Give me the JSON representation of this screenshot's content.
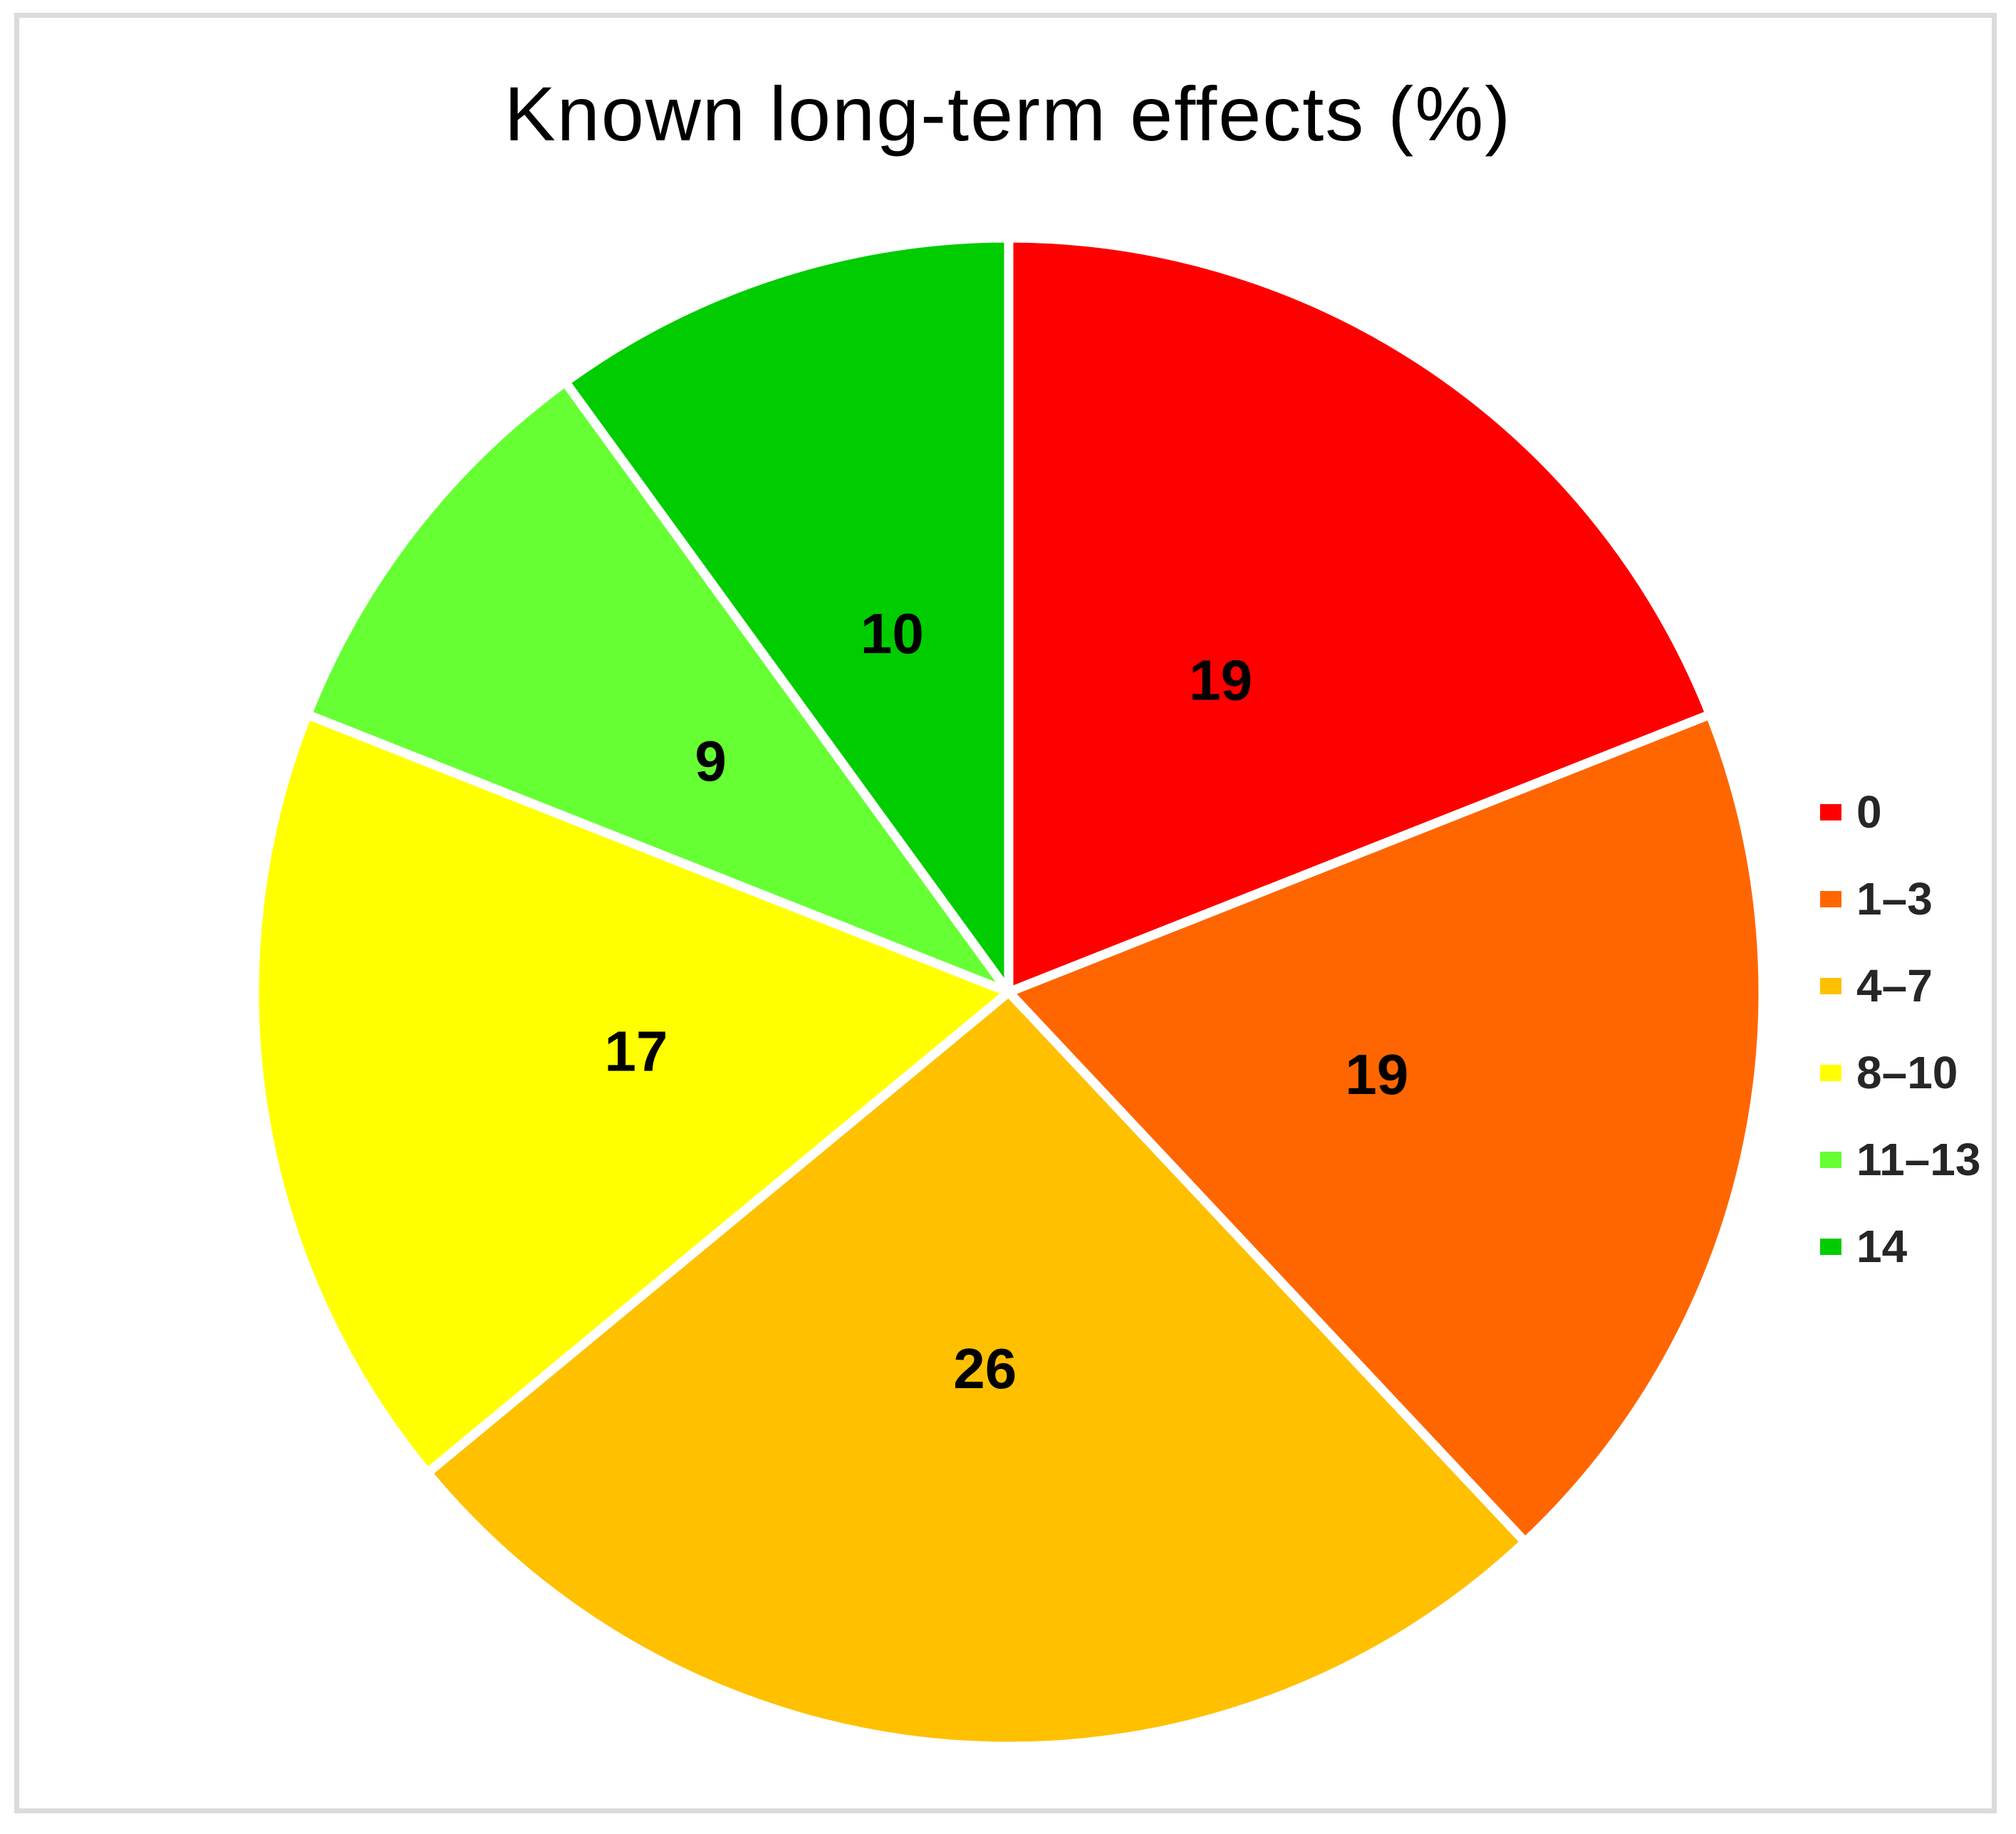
{
  "chart_data": {
    "type": "pie",
    "title": "Known long-term effects (%)",
    "unit": "%",
    "categories": [
      "0",
      "1–3",
      "4–7",
      "8–10",
      "11–13",
      "14"
    ],
    "values": [
      19,
      19,
      26,
      17,
      9,
      10
    ],
    "colors": [
      "#FF0000",
      "#FF6600",
      "#FFC000",
      "#FFFF00",
      "#66FF33",
      "#00CC00"
    ],
    "start_angle_deg": 0,
    "direction": "clockwise",
    "data_labels": "values",
    "slice_border_color": "#FFFFFF",
    "legend_position": "right",
    "legend_text_color": "#262626",
    "label_color": "#000000"
  },
  "styles": {
    "frame_border_color": "#DBDBDB",
    "background": "#FFFFFF"
  }
}
